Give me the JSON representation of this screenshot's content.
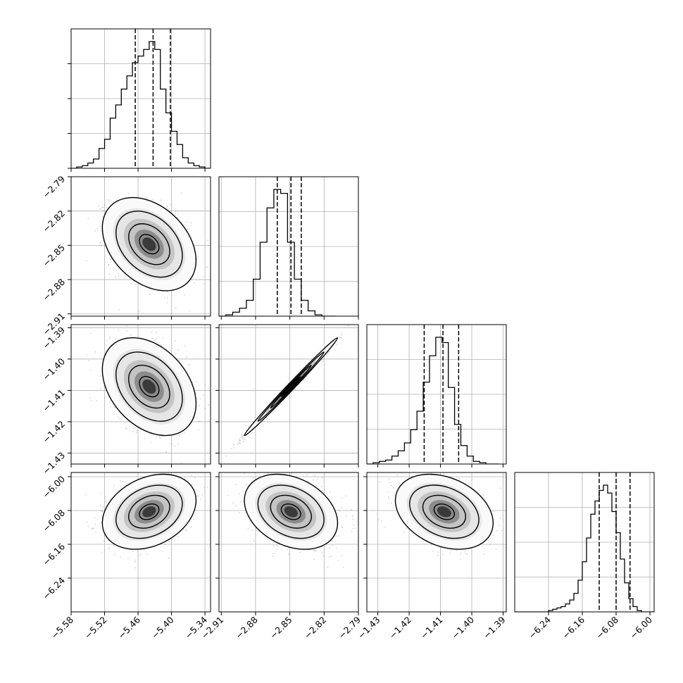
{
  "chart_data": {
    "type": "corner",
    "parameters": [
      {
        "range": [
          -5.58,
          -5.33
        ],
        "ticks": [
          -5.58,
          -5.52,
          -5.46,
          -5.4,
          -5.34
        ],
        "tick_labels": [
          "−5.58",
          "−5.52",
          "−5.46",
          "−5.40",
          "−5.34"
        ],
        "quantiles": [
          -5.465,
          -5.433,
          -5.402
        ],
        "hist_bins": [
          -5.58,
          -5.57,
          -5.56,
          -5.55,
          -5.54,
          -5.53,
          -5.52,
          -5.51,
          -5.5,
          -5.49,
          -5.48,
          -5.47,
          -5.46,
          -5.45,
          -5.44,
          -5.43,
          -5.42,
          -5.41,
          -5.4,
          -5.39,
          -5.38,
          -5.37,
          -5.36,
          -5.35,
          -5.34,
          -5.33
        ],
        "hist_counts": [
          0,
          1,
          2,
          4,
          7,
          15,
          22,
          38,
          48,
          60,
          70,
          80,
          85,
          90,
          96,
          90,
          60,
          42,
          28,
          18,
          8,
          4,
          2,
          1,
          0
        ]
      },
      {
        "range": [
          -2.912,
          -2.79
        ],
        "ticks": [
          -2.91,
          -2.88,
          -2.85,
          -2.82,
          -2.79
        ],
        "tick_labels": [
          "−2.91",
          "−2.88",
          "−2.85",
          "−2.82",
          "−2.79"
        ],
        "quantiles": [
          -2.861,
          -2.849,
          -2.84
        ],
        "hist_bins": [
          -2.912,
          -2.906,
          -2.9,
          -2.894,
          -2.888,
          -2.882,
          -2.876,
          -2.87,
          -2.864,
          -2.858,
          -2.852,
          -2.846,
          -2.84,
          -2.834,
          -2.828,
          -2.822,
          -2.816,
          -2.81
        ],
        "hist_counts": [
          0,
          1,
          3,
          6,
          12,
          28,
          56,
          82,
          96,
          93,
          56,
          28,
          12,
          4,
          1,
          0,
          0
        ]
      },
      {
        "range": [
          -1.4335,
          -1.389
        ],
        "ticks": [
          -1.43,
          -1.42,
          -1.41,
          -1.4,
          -1.39
        ],
        "tick_labels": [
          "−1.43",
          "−1.42",
          "−1.41",
          "−1.40",
          "−1.39"
        ],
        "quantiles": [
          -1.4152,
          -1.4092,
          -1.4042
        ],
        "hist_bins": [
          -1.4335,
          -1.4315,
          -1.4295,
          -1.4275,
          -1.4255,
          -1.4235,
          -1.4215,
          -1.4195,
          -1.4175,
          -1.4155,
          -1.4135,
          -1.4115,
          -1.4095,
          -1.4075,
          -1.4055,
          -1.4035,
          -1.4015,
          -1.3995,
          -1.3975,
          -1.3955,
          -1.3935,
          -1.3915
        ],
        "hist_counts": [
          0,
          1,
          2,
          3,
          6,
          10,
          16,
          26,
          40,
          62,
          82,
          96,
          92,
          58,
          30,
          14,
          6,
          2,
          1,
          0,
          0
        ]
      },
      {
        "range": [
          -6.32,
          -5.99
        ],
        "ticks": [
          -6.24,
          -6.16,
          -6.08,
          -6.0
        ],
        "tick_labels": [
          "−6.24",
          "−6.16",
          "−6.08",
          "−6.00"
        ],
        "quantiles": [
          -6.12,
          -6.08,
          -6.047
        ],
        "hist_bins": [
          -6.32,
          -6.31,
          -6.3,
          -6.29,
          -6.28,
          -6.27,
          -6.26,
          -6.25,
          -6.24,
          -6.23,
          -6.22,
          -6.21,
          -6.2,
          -6.19,
          -6.18,
          -6.17,
          -6.16,
          -6.15,
          -6.14,
          -6.13,
          -6.12,
          -6.11,
          -6.1,
          -6.09,
          -6.08,
          -6.07,
          -6.06,
          -6.05,
          -6.04,
          -6.03,
          -6.02,
          -6.01,
          -6.0,
          -5.99
        ],
        "hist_counts": [
          0,
          0,
          0,
          0,
          0,
          0,
          0,
          0,
          1,
          2,
          3,
          4,
          6,
          9,
          14,
          24,
          38,
          56,
          74,
          84,
          92,
          96,
          90,
          76,
          60,
          40,
          22,
          10,
          4,
          1,
          0,
          0,
          0
        ]
      }
    ],
    "pairs": [
      {
        "row": 1,
        "col": 0,
        "mean": [
          -5.44,
          -2.849
        ],
        "sd": [
          0.035,
          0.017
        ],
        "rho": -0.35
      },
      {
        "row": 2,
        "col": 0,
        "mean": [
          -5.44,
          -1.4088
        ],
        "sd": [
          0.035,
          0.0065
        ],
        "rho": -0.35
      },
      {
        "row": 2,
        "col": 1,
        "mean": [
          -2.849,
          -1.4088
        ],
        "sd": [
          0.017,
          0.0065
        ],
        "rho": 0.995
      },
      {
        "row": 3,
        "col": 0,
        "mean": [
          -5.44,
          -6.083
        ],
        "sd": [
          0.035,
          0.037
        ],
        "rho": 0.3
      },
      {
        "row": 3,
        "col": 1,
        "mean": [
          -2.849,
          -6.083
        ],
        "sd": [
          0.017,
          0.037
        ],
        "rho": -0.3
      },
      {
        "row": 3,
        "col": 2,
        "mean": [
          -1.4088,
          -6.083
        ],
        "sd": [
          0.0065,
          0.037
        ],
        "rho": -0.3
      }
    ],
    "grid": true,
    "line_color": "#000000",
    "scatter_color": "#808080",
    "density_colormap": [
      "#ffffff",
      "#000000"
    ]
  }
}
